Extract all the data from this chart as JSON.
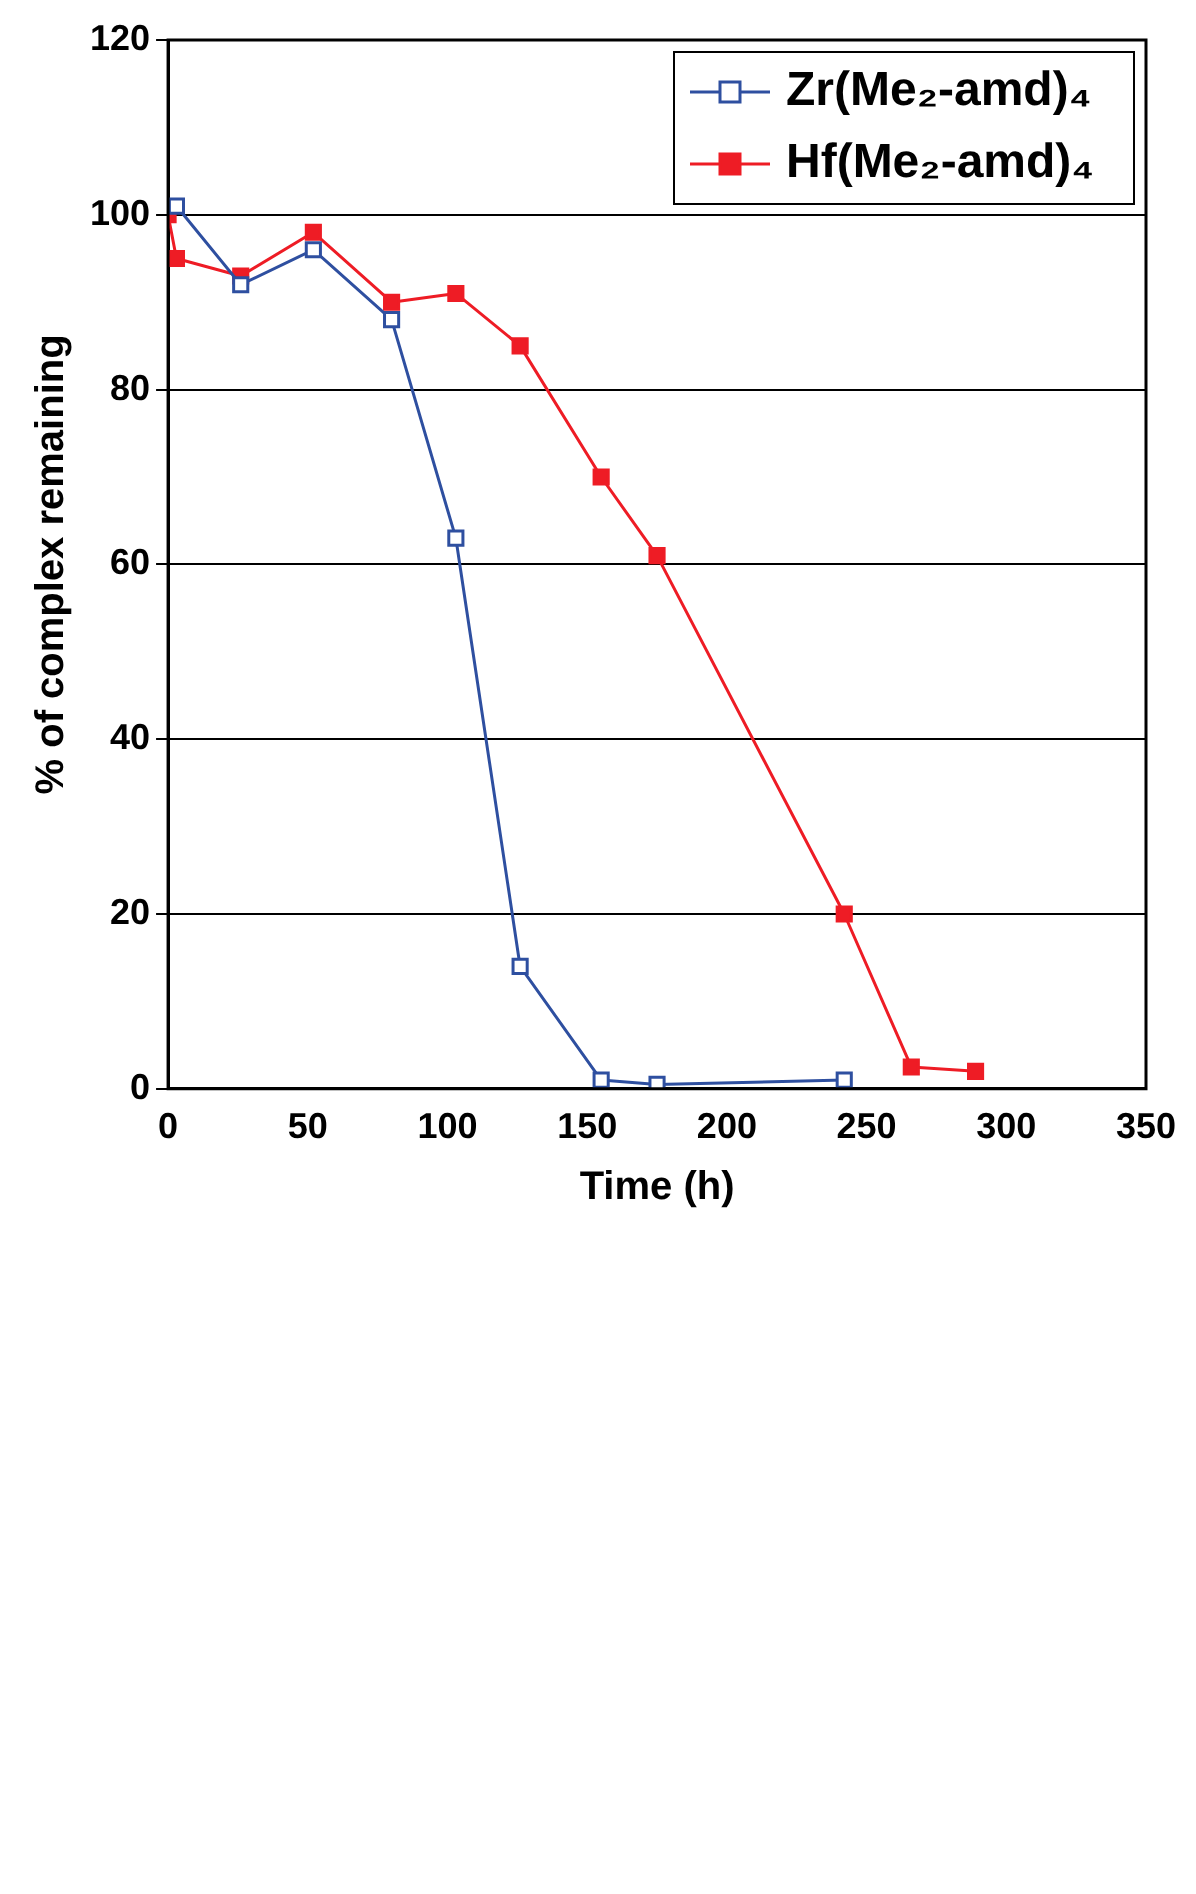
{
  "chart_data": {
    "type": "line",
    "xlabel": "Time (h)",
    "ylabel": "% of complex remaining",
    "xlim": [
      0,
      350
    ],
    "xticks": [
      0,
      50,
      100,
      150,
      200,
      250,
      300,
      350
    ],
    "ylim": [
      0,
      120
    ],
    "yticks": [
      0,
      20,
      40,
      60,
      80,
      100,
      120
    ],
    "grid": "y",
    "legend": "top right",
    "marker": "square",
    "line_style": "solid",
    "series": [
      {
        "name": "Zr(Me₂-amd)₄",
        "color": "#2e4fa0",
        "x": [
          3,
          26,
          52,
          80,
          103,
          126,
          155,
          175,
          242
        ],
        "values": [
          101,
          92,
          96,
          88,
          63,
          14,
          1,
          0.5,
          1
        ]
      },
      {
        "name": "Hf(Me₂-amd)₄",
        "color": "#ee1c25",
        "x": [
          0,
          3,
          26,
          52,
          80,
          103,
          126,
          155,
          175,
          242,
          266,
          289
        ],
        "values": [
          100,
          95,
          93,
          98,
          90,
          91,
          85,
          70,
          61,
          20,
          2.5,
          2
        ]
      }
    ]
  }
}
